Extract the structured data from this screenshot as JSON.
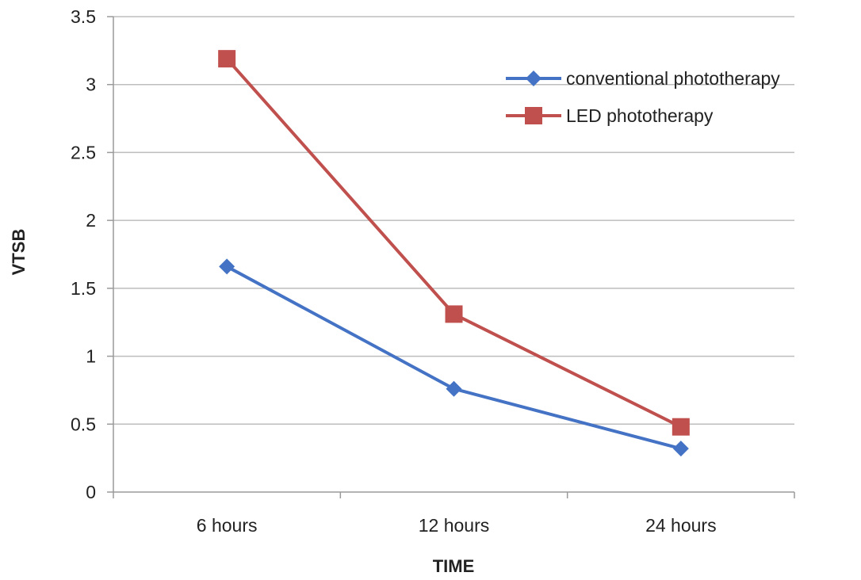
{
  "chart_data": {
    "type": "line",
    "title": "",
    "xlabel": "TIME",
    "ylabel": "VTSB",
    "categories": [
      "6 hours",
      "12 hours",
      "24 hours"
    ],
    "ylim": [
      0,
      3.5
    ],
    "ytick_step": 0.5,
    "ytick_labels": [
      "0",
      "0.5",
      "1",
      "1.5",
      "2",
      "2.5",
      "3",
      "3.5"
    ],
    "grid": "horizontal",
    "legend_position": "top-right",
    "series": [
      {
        "name": "conventional phototherapy",
        "values": [
          1.66,
          0.76,
          0.32
        ],
        "color": "#4472C4",
        "marker": "diamond"
      },
      {
        "name": "LED phototherapy",
        "values": [
          3.19,
          1.31,
          0.48
        ],
        "color": "#C0504D",
        "marker": "square"
      }
    ]
  }
}
